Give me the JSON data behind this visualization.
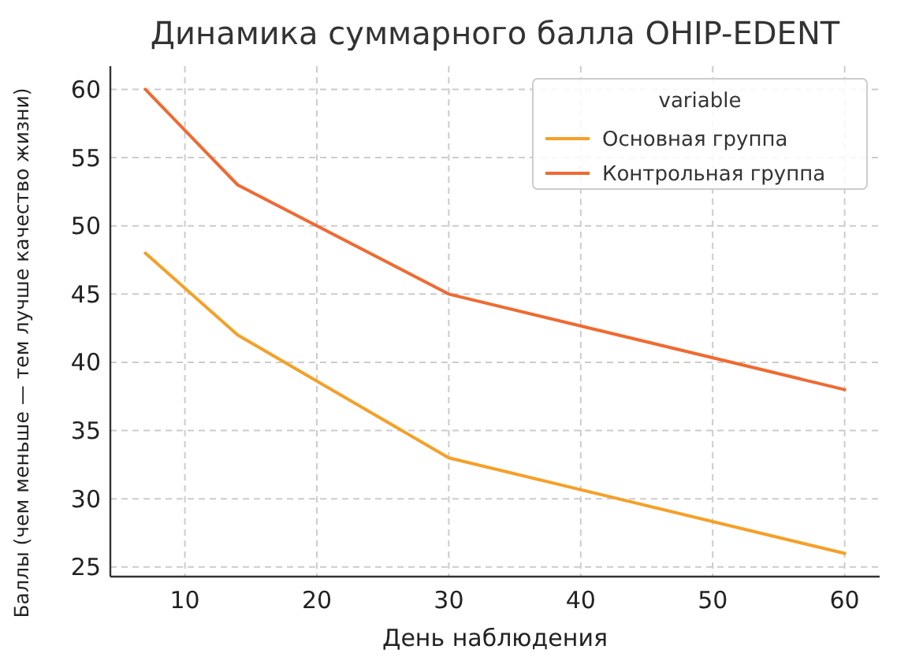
{
  "chart_data": {
    "type": "line",
    "title": "Динамика суммарного балла OHIP-EDENT",
    "xlabel": "День наблюдения",
    "ylabel": "Баллы (чем меньше — тем лучше качество жизни)",
    "legend_title": "variable",
    "x": [
      7,
      14,
      30,
      60
    ],
    "series": [
      {
        "name": "Основная группа",
        "color": "#f5a027",
        "values": [
          48,
          42,
          33,
          26
        ]
      },
      {
        "name": "Контрольная группа",
        "color": "#ef6a32",
        "values": [
          60,
          53,
          45,
          38
        ]
      }
    ],
    "xlim": [
      4.35,
      62.65
    ],
    "xticks": [
      10,
      20,
      30,
      40,
      50,
      60
    ],
    "ylim": [
      24.3,
      61.7
    ],
    "yticks": [
      25,
      30,
      35,
      40,
      45,
      50,
      55,
      60
    ],
    "grid": true,
    "legend": "top right",
    "line_style": "solid"
  }
}
